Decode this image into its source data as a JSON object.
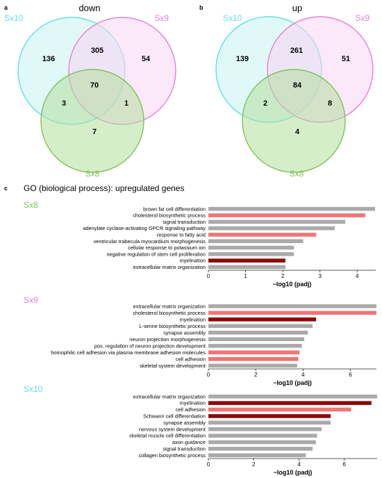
{
  "panel_a": {
    "letter": "a",
    "title": "down"
  },
  "panel_b": {
    "letter": "b",
    "title": "up"
  },
  "panel_c": {
    "letter": "c",
    "title": "GO (biological process): upregulated genes"
  },
  "colors": {
    "sx10": "#5ee0e0",
    "sx9": "#e57fd8",
    "sx8": "#7cc15a",
    "sx10_fill": "#c9f3f3",
    "sx9_fill": "#f8d6f3",
    "sx8_fill": "#b5de9e",
    "bar_gray": "#aaaaaa",
    "bar_salmon": "#f07575",
    "bar_darkred": "#8b0a0a"
  },
  "chart_data": [
    {
      "type": "venn",
      "title": "down",
      "sets": [
        "Sx10",
        "Sx9",
        "Sx8"
      ],
      "regions": {
        "sx10_only": 136,
        "sx9_only": 54,
        "sx8_only": 7,
        "sx10_sx9": 305,
        "sx10_sx8": 3,
        "sx9_sx8": 1,
        "all": 70
      }
    },
    {
      "type": "venn",
      "title": "up",
      "sets": [
        "Sx10",
        "Sx9",
        "Sx8"
      ],
      "regions": {
        "sx10_only": 139,
        "sx9_only": 51,
        "sx8_only": 4,
        "sx10_sx9": 261,
        "sx10_sx8": 2,
        "sx9_sx8": 8,
        "all": 84
      }
    },
    {
      "type": "bar",
      "orientation": "horizontal",
      "group": "Sx8",
      "xlabel": "−log10 (padj)",
      "xlim": [
        0,
        4.5
      ],
      "xticks": [
        0,
        1,
        2,
        3,
        4
      ],
      "bars": [
        {
          "label": "brown fat cell differentiation",
          "value": 4.48,
          "color": "gray"
        },
        {
          "label": "cholesterol biosynthetic process",
          "value": 4.22,
          "color": "salmon"
        },
        {
          "label": "signal transduction",
          "value": 3.68,
          "color": "gray"
        },
        {
          "label": "adenylate cyclase-activating GPCR signaling pathway",
          "value": 3.4,
          "color": "gray"
        },
        {
          "label": "response to fatty acid",
          "value": 2.9,
          "color": "salmon"
        },
        {
          "label": "ventricular trabecula myocardium morphogenesis",
          "value": 2.55,
          "color": "gray"
        },
        {
          "label": "cellular response to potassium ion",
          "value": 2.3,
          "color": "gray"
        },
        {
          "label": "negative regulation of stem cell proliferation",
          "value": 2.3,
          "color": "gray"
        },
        {
          "label": "myelination",
          "value": 2.07,
          "color": "darkred"
        },
        {
          "label": "extracellular matrix organization",
          "value": 2.07,
          "color": "gray"
        }
      ]
    },
    {
      "type": "bar",
      "orientation": "horizontal",
      "group": "Sx9",
      "xlabel": "−log10 (padj)",
      "xlim": [
        0,
        7.1
      ],
      "xticks": [
        0,
        2,
        4,
        6
      ],
      "bars": [
        {
          "label": "extracellular matrix organization",
          "value": 7.1,
          "color": "gray"
        },
        {
          "label": "cholesterol biosynthetic process",
          "value": 7.1,
          "color": "salmon"
        },
        {
          "label": "myelination",
          "value": 4.55,
          "color": "darkred"
        },
        {
          "label": "L-serine biosynthetic process",
          "value": 4.4,
          "color": "gray"
        },
        {
          "label": "synapse assembly",
          "value": 4.2,
          "color": "gray"
        },
        {
          "label": "neuron projection morphogenesis",
          "value": 4.05,
          "color": "gray"
        },
        {
          "label": "pos. regulation of neuron projection development",
          "value": 3.95,
          "color": "gray"
        },
        {
          "label": "homophilic cell adhesion via plasma membrane adhesion molecules",
          "value": 3.85,
          "color": "salmon"
        },
        {
          "label": "cell adhesion",
          "value": 3.8,
          "color": "salmon"
        },
        {
          "label": "skeletal system development",
          "value": 3.75,
          "color": "gray"
        }
      ]
    },
    {
      "type": "bar",
      "orientation": "horizontal",
      "group": "Sx10",
      "xlabel": "−log10 (padj)",
      "xlim": [
        0,
        7.45
      ],
      "xticks": [
        0,
        2,
        4,
        6
      ],
      "bars": [
        {
          "label": "extracellular matrix organization",
          "value": 7.45,
          "color": "gray"
        },
        {
          "label": "myelination",
          "value": 7.2,
          "color": "darkred"
        },
        {
          "label": "cell adhesion",
          "value": 6.3,
          "color": "salmon"
        },
        {
          "label": "Schwann cell differentiation",
          "value": 5.4,
          "color": "darkred"
        },
        {
          "label": "synapse assembly",
          "value": 5.4,
          "color": "gray"
        },
        {
          "label": "nervous system development",
          "value": 5.0,
          "color": "gray"
        },
        {
          "label": "skeletal muscle cell differentiation",
          "value": 4.8,
          "color": "gray"
        },
        {
          "label": "axon guidance",
          "value": 4.75,
          "color": "gray"
        },
        {
          "label": "signal transduction",
          "value": 4.6,
          "color": "gray"
        },
        {
          "label": "collagen biosynthetic process",
          "value": 4.3,
          "color": "gray"
        }
      ]
    }
  ]
}
